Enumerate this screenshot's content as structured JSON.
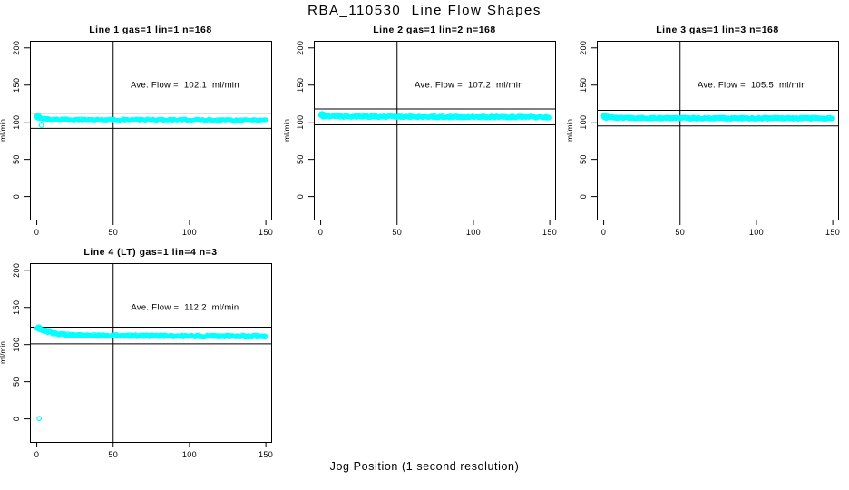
{
  "figure": {
    "title": "RBA_110530  Line Flow Shapes",
    "xlabel": "Jog Position (1 second resolution)",
    "background": "#ffffff",
    "point_color": "#00ffff",
    "axis_color": "#000000"
  },
  "chart_data": [
    {
      "type": "scatter",
      "title": "Line 1 gas=1 lin=1 n=168",
      "ylabel": "ml/min",
      "annotation": "Ave. Flow =  102.1  ml/min",
      "ave_flow_ml_min": 102.1,
      "n": 168,
      "xticks": [
        0,
        50,
        100,
        150
      ],
      "yticks": [
        0,
        50,
        100,
        150,
        200
      ],
      "xlim": [
        -4.5,
        153.5
      ],
      "ylim": [
        -31,
        209.5
      ],
      "vline_x": 50,
      "hlines": [
        112.3,
        91.9
      ],
      "band_centerline": [
        [
          0,
          107.5
        ],
        [
          2,
          106.2
        ],
        [
          5,
          104.6
        ],
        [
          10,
          103.6
        ],
        [
          20,
          103.2
        ],
        [
          50,
          103.0
        ],
        [
          100,
          102.8
        ],
        [
          150,
          102.5
        ]
      ],
      "band_halfwidth": 1.2,
      "outliers": [
        [
          3,
          96
        ]
      ]
    },
    {
      "type": "scatter",
      "title": "Line 2 gas=1 lin=2 n=168",
      "ylabel": "ml/min",
      "annotation": "Ave. Flow =  107.2  ml/min",
      "ave_flow_ml_min": 107.2,
      "n": 168,
      "xticks": [
        0,
        50,
        100,
        150
      ],
      "yticks": [
        0,
        50,
        100,
        150,
        200
      ],
      "xlim": [
        -4.5,
        153.5
      ],
      "ylim": [
        -31,
        209.5
      ],
      "vline_x": 50,
      "hlines": [
        117.9,
        96.5
      ],
      "band_centerline": [
        [
          0,
          110.0
        ],
        [
          2,
          109.0
        ],
        [
          5,
          108.3
        ],
        [
          15,
          107.8
        ],
        [
          50,
          107.5
        ],
        [
          100,
          107.2
        ],
        [
          150,
          106.9
        ]
      ],
      "band_halfwidth": 1.2,
      "outliers": []
    },
    {
      "type": "scatter",
      "title": "Line 3 gas=1 lin=3 n=168",
      "ylabel": "ml/min",
      "annotation": "Ave. Flow =  105.5  ml/min",
      "ave_flow_ml_min": 105.5,
      "n": 168,
      "xticks": [
        0,
        50,
        100,
        150
      ],
      "yticks": [
        0,
        50,
        100,
        150,
        200
      ],
      "xlim": [
        -4.5,
        153.5
      ],
      "ylim": [
        -31,
        209.5
      ],
      "vline_x": 50,
      "hlines": [
        116.1,
        95.0
      ],
      "band_centerline": [
        [
          0,
          108.0
        ],
        [
          2,
          107.0
        ],
        [
          5,
          106.3
        ],
        [
          15,
          105.8
        ],
        [
          50,
          105.6
        ],
        [
          100,
          105.4
        ],
        [
          150,
          105.3
        ]
      ],
      "band_halfwidth": 1.2,
      "outliers": []
    },
    {
      "type": "scatter",
      "title": "Line 4 (LT) gas=1 lin=4 n=3",
      "ylabel": "ml/min",
      "annotation": "Ave. Flow =  112.2  ml/min",
      "ave_flow_ml_min": 112.2,
      "n": 3,
      "xticks": [
        0,
        50,
        100,
        150
      ],
      "yticks": [
        0,
        50,
        100,
        150,
        200
      ],
      "xlim": [
        -4.5,
        153.5
      ],
      "ylim": [
        -31,
        209.5
      ],
      "vline_x": 50,
      "hlines": [
        123.4,
        101.0
      ],
      "band_centerline": [
        [
          0,
          122.0
        ],
        [
          2,
          121.0
        ],
        [
          5,
          118.5
        ],
        [
          10,
          115.5
        ],
        [
          15,
          113.8
        ],
        [
          25,
          112.6
        ],
        [
          40,
          112.2
        ],
        [
          70,
          111.8
        ],
        [
          110,
          111.4
        ],
        [
          150,
          111.2
        ]
      ],
      "band_halfwidth": 1.2,
      "outliers": [
        [
          1.5,
          0.5
        ]
      ]
    }
  ]
}
